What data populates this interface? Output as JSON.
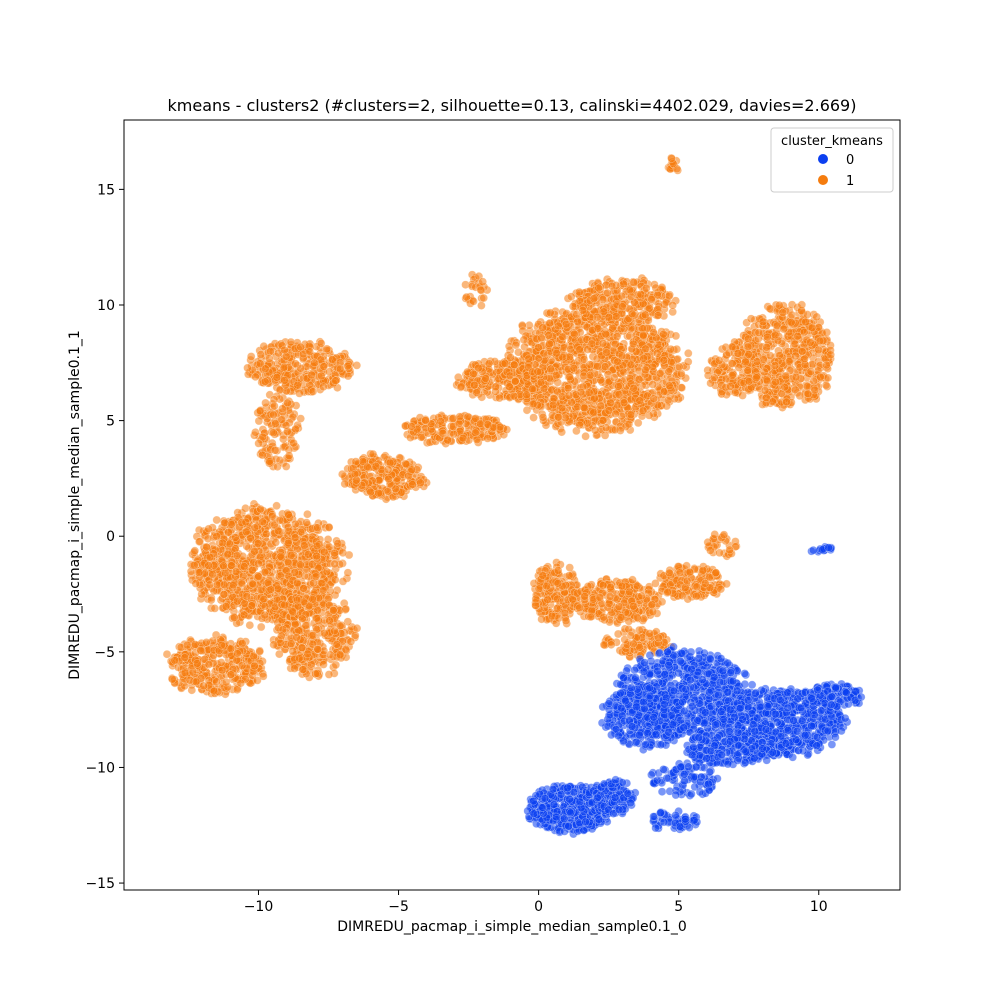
{
  "chart_data": {
    "type": "scatter",
    "title": "kmeans - clusters2 (#clusters=2, silhouette=0.13, calinski=4402.029, davies=2.669)",
    "xlabel": "DIMREDU_pacmap_i_simple_median_sample0.1_0",
    "ylabel": "DIMREDU_pacmap_i_simple_median_sample0.1_1",
    "xlim": [
      -14.8,
      12.9
    ],
    "ylim": [
      -15.3,
      18.0
    ],
    "xticks": [
      -10,
      -5,
      0,
      5,
      10
    ],
    "yticks": [
      -15,
      -10,
      -5,
      0,
      5,
      10,
      15
    ],
    "grid": false,
    "legend": {
      "title": "cluster_kmeans",
      "placement": "top-right",
      "entries": [
        "0",
        "1"
      ]
    },
    "series": [
      {
        "name": "0",
        "color": "#0b3ff0",
        "regions": [
          {
            "cx": 5.2,
            "cy": -6.8,
            "rx": 2.2,
            "ry": 1.8,
            "n": 650
          },
          {
            "cx": 3.8,
            "cy": -7.8,
            "rx": 1.5,
            "ry": 1.3,
            "n": 300
          },
          {
            "cx": 8.6,
            "cy": -8.1,
            "rx": 2.2,
            "ry": 1.4,
            "n": 650
          },
          {
            "cx": 10.6,
            "cy": -6.9,
            "rx": 0.9,
            "ry": 0.5,
            "n": 120
          },
          {
            "cx": 6.8,
            "cy": -9.2,
            "rx": 1.5,
            "ry": 0.7,
            "n": 200
          },
          {
            "cx": 1.1,
            "cy": -11.8,
            "rx": 1.4,
            "ry": 1.0,
            "n": 450
          },
          {
            "cx": 2.6,
            "cy": -11.3,
            "rx": 0.8,
            "ry": 0.7,
            "n": 150
          },
          {
            "cx": 4.8,
            "cy": -12.3,
            "rx": 0.9,
            "ry": 0.4,
            "n": 60
          },
          {
            "cx": 5.2,
            "cy": -10.5,
            "rx": 1.2,
            "ry": 0.7,
            "n": 90
          },
          {
            "cx": 10.2,
            "cy": -0.6,
            "rx": 0.5,
            "ry": 0.15,
            "n": 15
          }
        ]
      },
      {
        "name": "1",
        "color": "#f57c0e",
        "regions": [
          {
            "cx": -9.7,
            "cy": -1.3,
            "rx": 2.6,
            "ry": 2.4,
            "n": 1100
          },
          {
            "cx": -11.5,
            "cy": -5.6,
            "rx": 1.7,
            "ry": 1.2,
            "n": 350
          },
          {
            "cx": -8.0,
            "cy": -4.2,
            "rx": 1.4,
            "ry": 1.8,
            "n": 350
          },
          {
            "cx": -8.5,
            "cy": 7.3,
            "rx": 1.8,
            "ry": 1.1,
            "n": 300
          },
          {
            "cx": -9.3,
            "cy": 4.5,
            "rx": 0.8,
            "ry": 1.6,
            "n": 120
          },
          {
            "cx": -5.5,
            "cy": 2.6,
            "rx": 1.4,
            "ry": 0.9,
            "n": 250
          },
          {
            "cx": -3.0,
            "cy": 4.6,
            "rx": 1.8,
            "ry": 0.6,
            "n": 200
          },
          {
            "cx": -1.2,
            "cy": 6.8,
            "rx": 1.6,
            "ry": 0.8,
            "n": 250
          },
          {
            "cx": 2.0,
            "cy": 7.2,
            "rx": 3.0,
            "ry": 2.6,
            "n": 1300
          },
          {
            "cx": 3.0,
            "cy": 10.2,
            "rx": 1.8,
            "ry": 0.9,
            "n": 250
          },
          {
            "cx": 8.8,
            "cy": 7.8,
            "rx": 1.6,
            "ry": 2.1,
            "n": 500
          },
          {
            "cx": 7.0,
            "cy": 7.2,
            "rx": 0.9,
            "ry": 1.1,
            "n": 150
          },
          {
            "cx": -2.2,
            "cy": 10.6,
            "rx": 0.4,
            "ry": 0.7,
            "n": 25
          },
          {
            "cx": 4.8,
            "cy": 16.0,
            "rx": 0.2,
            "ry": 0.4,
            "n": 15
          },
          {
            "cx": 0.6,
            "cy": -2.5,
            "rx": 0.8,
            "ry": 1.3,
            "n": 180
          },
          {
            "cx": 2.8,
            "cy": -2.8,
            "rx": 1.6,
            "ry": 0.9,
            "n": 250
          },
          {
            "cx": 5.4,
            "cy": -2.0,
            "rx": 1.2,
            "ry": 0.7,
            "n": 150
          },
          {
            "cx": 6.5,
            "cy": -0.4,
            "rx": 0.6,
            "ry": 0.5,
            "n": 30
          },
          {
            "cx": 3.5,
            "cy": -4.6,
            "rx": 1.2,
            "ry": 0.6,
            "n": 100
          }
        ]
      }
    ]
  }
}
